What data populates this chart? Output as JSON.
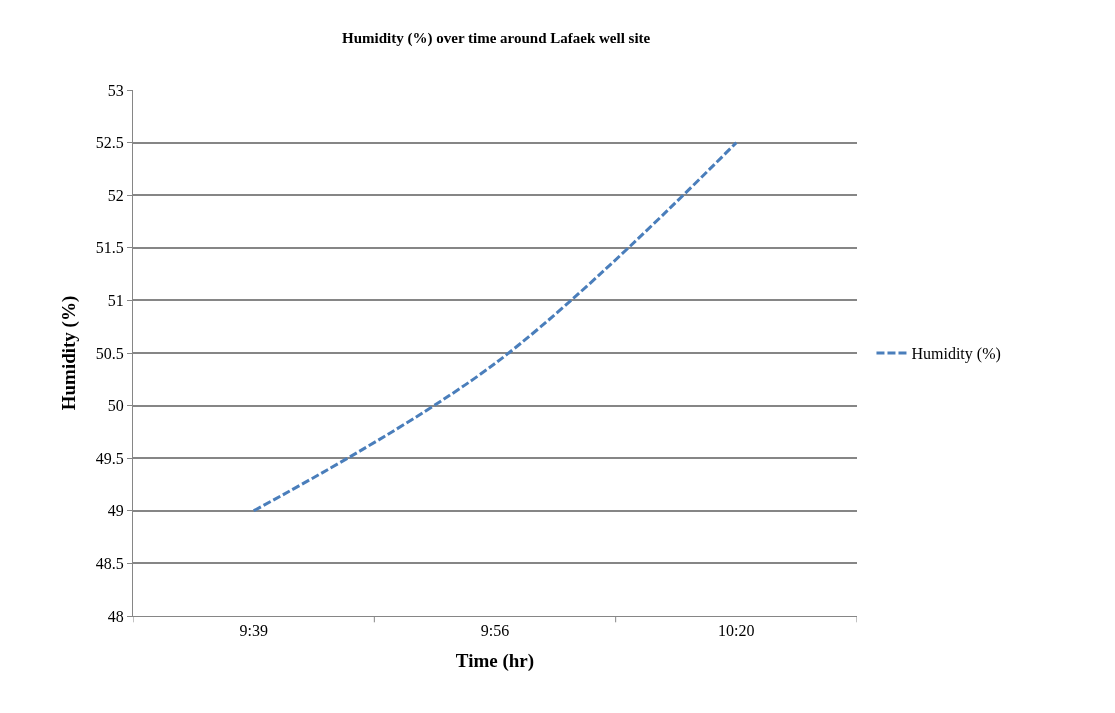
{
  "chart_data": {
    "type": "line",
    "title": "Humidity (%) over time around Lafaek well site",
    "xlabel": "Time (hr)",
    "ylabel": "Humidity (%)",
    "categories": [
      "9:39",
      "9:56",
      "10:20"
    ],
    "series": [
      {
        "name": "Humidity (%)",
        "color": "#4a7ebb",
        "values": [
          49,
          50.4,
          52.5
        ]
      }
    ],
    "ylim": [
      48,
      53
    ],
    "yticks": [
      48,
      48.5,
      49,
      49.5,
      50,
      50.5,
      51,
      51.5,
      52,
      52.5,
      53
    ],
    "grid": "y",
    "legend": "right",
    "marker": "none",
    "line_style": "dashed"
  }
}
